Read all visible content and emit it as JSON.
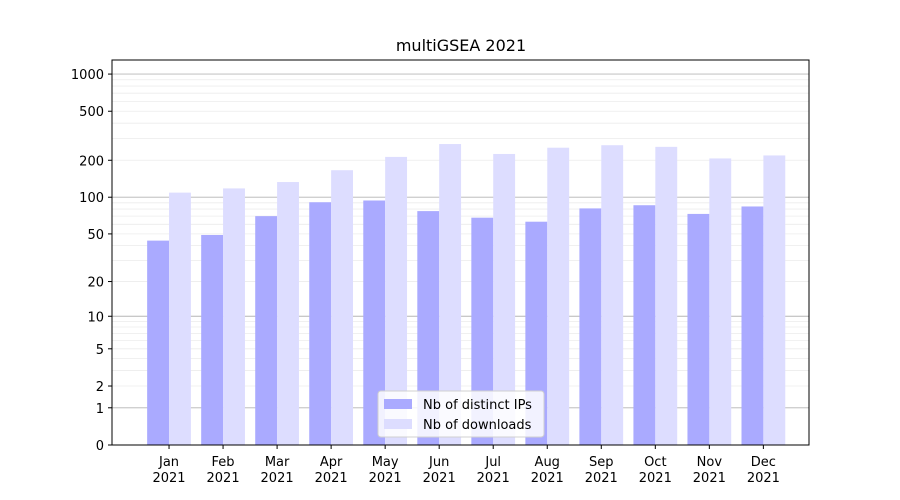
{
  "chart_data": {
    "type": "bar",
    "title": "multiGSEA 2021",
    "scale": "log1p",
    "categories": [
      [
        "Jan",
        "2021"
      ],
      [
        "Feb",
        "2021"
      ],
      [
        "Mar",
        "2021"
      ],
      [
        "Apr",
        "2021"
      ],
      [
        "May",
        "2021"
      ],
      [
        "Jun",
        "2021"
      ],
      [
        "Jul",
        "2021"
      ],
      [
        "Aug",
        "2021"
      ],
      [
        "Sep",
        "2021"
      ],
      [
        "Oct",
        "2021"
      ],
      [
        "Nov",
        "2021"
      ],
      [
        "Dec",
        "2021"
      ]
    ],
    "series": [
      {
        "name": "Nb of distinct IPs",
        "color": "#aaaaff",
        "values": [
          44,
          49,
          70,
          91,
          94,
          77,
          68,
          63,
          81,
          86,
          73,
          84
        ]
      },
      {
        "name": "Nb of downloads",
        "color": "#ddddff",
        "values": [
          109,
          118,
          133,
          166,
          213,
          271,
          225,
          253,
          265,
          257,
          207,
          219
        ]
      }
    ],
    "yticks": [
      0,
      1,
      2,
      5,
      10,
      20,
      50,
      100,
      200,
      500,
      1000
    ],
    "ylim": [
      0,
      1300
    ],
    "grid": true,
    "legend": "bottom-center"
  }
}
